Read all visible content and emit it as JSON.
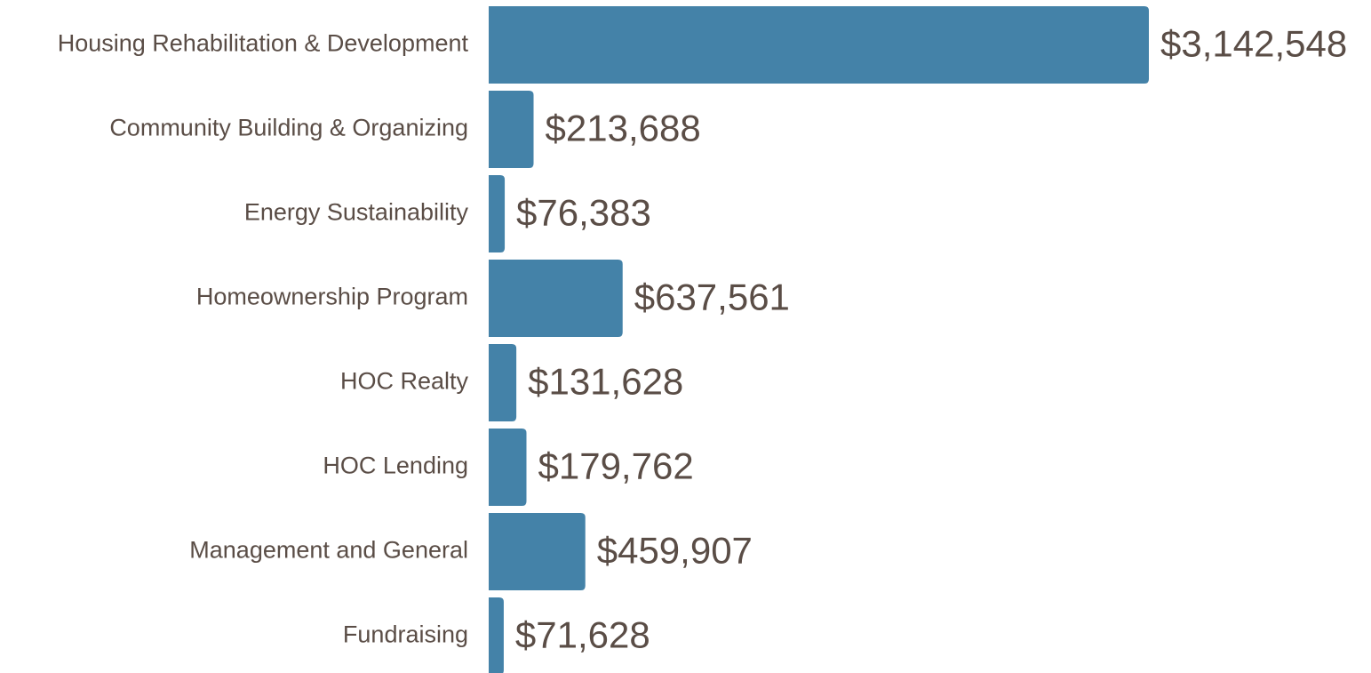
{
  "chart_data": {
    "type": "bar",
    "orientation": "horizontal",
    "categories": [
      "Housing Rehabilitation & Development",
      "Community Building & Organizing",
      "Energy Sustainability",
      "Homeownership Program",
      "HOC Realty",
      "HOC Lending",
      "Management and General",
      "Fundraising"
    ],
    "values": [
      3142548,
      213688,
      76383,
      637561,
      131628,
      179762,
      459907,
      71628
    ],
    "value_labels": [
      "$3,142,548",
      "$213,688",
      "$76,383",
      "$637,561",
      "$131,628",
      "$179,762",
      "$459,907",
      "$71,628"
    ],
    "color": "#4482a8"
  }
}
